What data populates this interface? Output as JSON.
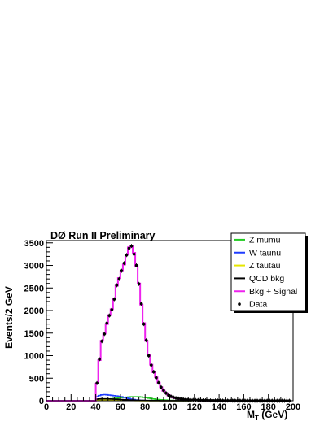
{
  "chart_data": {
    "type": "line",
    "title": "DØ Run II Preliminary",
    "ylabel": "Events/2 GeV",
    "xlabel_main": "M",
    "xlabel_sub": "T",
    "xlabel_unit": " (GeV)",
    "xlim": [
      0,
      200
    ],
    "ylim": [
      0,
      3550
    ],
    "xticks": [
      "0",
      "20",
      "40",
      "60",
      "80",
      "100",
      "120",
      "140",
      "160",
      "180",
      "200"
    ],
    "yticks": [
      "0",
      "500",
      "1000",
      "1500",
      "2000",
      "2500",
      "3000",
      "3500"
    ],
    "bin_edges_start": 38,
    "bin_width": 2,
    "series": [
      {
        "name": "Z mumu",
        "color": "#22cc22",
        "values": [
          0,
          8,
          12,
          18,
          24,
          30,
          36,
          42,
          48,
          55,
          62,
          68,
          74,
          79,
          83,
          86,
          88,
          88,
          86,
          82,
          76,
          68,
          58,
          48,
          40,
          33,
          27,
          22,
          18,
          14,
          11,
          8,
          6,
          4,
          3,
          2,
          1,
          1,
          0,
          0
        ]
      },
      {
        "name": "W taunu",
        "color": "#1e3cff",
        "values": [
          0,
          90,
          115,
          130,
          135,
          132,
          125,
          118,
          112,
          106,
          98,
          88,
          76,
          62,
          48,
          36,
          26,
          18,
          12,
          8,
          6,
          4,
          3,
          2,
          1,
          1,
          0,
          0,
          0,
          0,
          0,
          0,
          0,
          0,
          0,
          0,
          0,
          0,
          0,
          0
        ]
      },
      {
        "name": "Z tautau",
        "color": "#e6e600",
        "values": [
          0,
          10,
          14,
          17,
          19,
          20,
          20,
          19,
          18,
          17,
          16,
          14,
          12,
          10,
          8,
          6,
          5,
          4,
          3,
          2,
          2,
          1,
          1,
          0,
          0,
          0,
          0,
          0,
          0,
          0,
          0,
          0,
          0,
          0,
          0,
          0,
          0,
          0,
          0,
          0
        ]
      },
      {
        "name": "QCD bkg",
        "color": "#000000",
        "values": [
          0,
          35,
          40,
          42,
          42,
          41,
          39,
          37,
          35,
          33,
          30,
          27,
          24,
          21,
          18,
          15,
          13,
          11,
          9,
          8,
          7,
          6,
          5,
          4,
          4,
          3,
          3,
          2,
          2,
          2,
          1,
          1,
          1,
          1,
          1,
          0,
          0,
          0,
          0,
          0
        ]
      },
      {
        "name": "Bkg + Signal",
        "color": "#ee22ee",
        "values": [
          0,
          380,
          900,
          1330,
          1490,
          1700,
          1900,
          2030,
          2260,
          2550,
          2720,
          2870,
          3020,
          3240,
          3400,
          3420,
          3280,
          2990,
          2600,
          2130,
          1720,
          1330,
          1020,
          800,
          630,
          520,
          400,
          300,
          220,
          170,
          120,
          90,
          70,
          55,
          45,
          35,
          30,
          25,
          20,
          15,
          12,
          10,
          8,
          6,
          5,
          4,
          3,
          3,
          2,
          2,
          1,
          1,
          1,
          1,
          1,
          0,
          0,
          0,
          0,
          0,
          0
        ]
      }
    ],
    "data_points": {
      "name": "Data",
      "color": "#000000",
      "x": [
        41,
        43,
        45,
        47,
        49,
        51,
        53,
        55,
        57,
        59,
        61,
        63,
        65,
        67,
        69,
        71,
        73,
        75,
        77,
        79,
        81,
        83,
        85,
        87,
        89,
        91,
        93,
        95,
        97,
        99,
        101,
        103,
        105,
        107,
        109,
        111,
        113,
        115,
        117,
        119,
        121,
        123,
        125,
        127,
        129,
        131,
        133,
        135,
        137,
        139,
        141,
        143,
        145,
        147,
        149,
        151,
        153,
        155,
        157,
        159,
        161,
        163,
        165,
        167,
        169,
        171,
        173,
        175,
        177,
        179,
        181,
        183,
        185,
        187,
        189,
        191,
        193,
        195,
        197
      ],
      "y": [
        390,
        920,
        1320,
        1480,
        1720,
        1890,
        2020,
        2250,
        2560,
        2700,
        2880,
        3050,
        3230,
        3380,
        3430,
        3250,
        3000,
        2590,
        2150,
        1700,
        1340,
        1000,
        790,
        640,
        510,
        400,
        300,
        230,
        170,
        120,
        95,
        75,
        60,
        50,
        40,
        32,
        28,
        24,
        20,
        18,
        15,
        14,
        12,
        10,
        9,
        8,
        7,
        7,
        6,
        5,
        5,
        4,
        4,
        4,
        3,
        3,
        3,
        3,
        2,
        2,
        2,
        2,
        2,
        1,
        1,
        1,
        1,
        1,
        1,
        1,
        1,
        1,
        1,
        0,
        0,
        0,
        0,
        0,
        0
      ]
    },
    "legend": {
      "placement": "top-right",
      "entries": [
        {
          "label": "Z mumu",
          "color": "#22cc22",
          "kind": "line"
        },
        {
          "label": "W taunu",
          "color": "#1e3cff",
          "kind": "line"
        },
        {
          "label": "Z tautau",
          "color": "#e6e600",
          "kind": "line"
        },
        {
          "label": "QCD bkg",
          "color": "#000000",
          "kind": "line"
        },
        {
          "label": "Bkg + Signal",
          "color": "#ee22ee",
          "kind": "line"
        },
        {
          "label": "Data",
          "color": "#000000",
          "kind": "marker"
        }
      ]
    }
  }
}
